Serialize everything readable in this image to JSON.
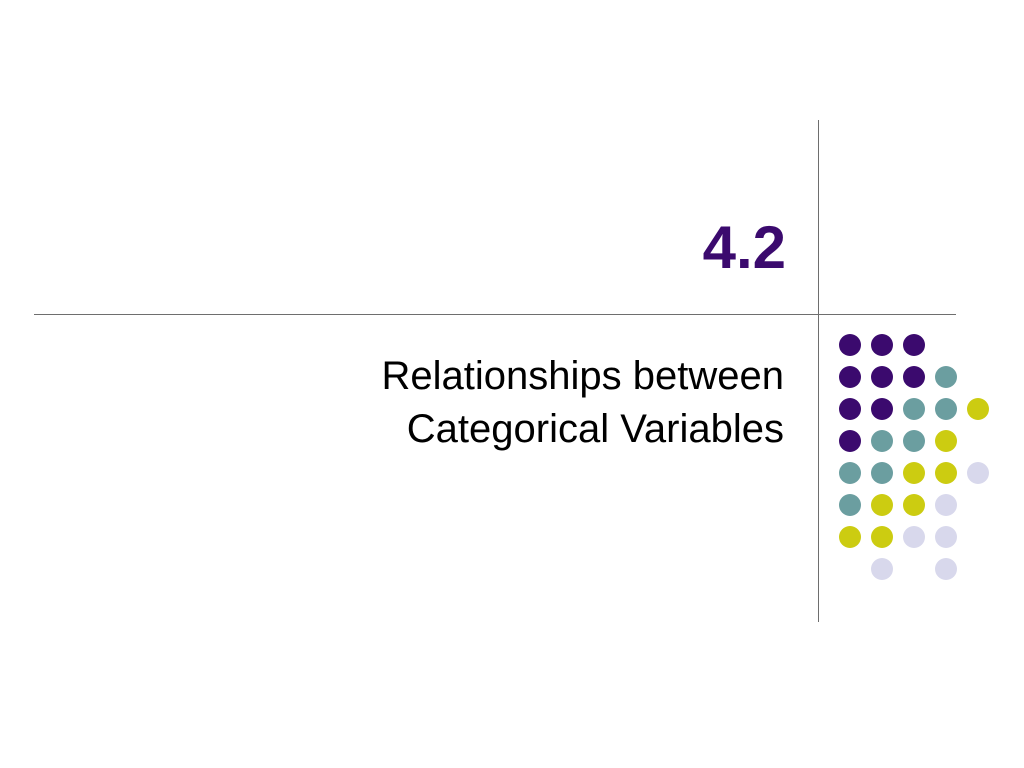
{
  "slide": {
    "title": "4.2",
    "subtitle_lines": [
      "Relationships between",
      "Categorical Variables"
    ]
  },
  "colors": {
    "title": "#3b0a6e",
    "purple": "#3b0a6e",
    "teal": "#6b9ea0",
    "yellow": "#cccc11",
    "lavender": "#d8d8ec",
    "rule": "#6e6e6e"
  },
  "dot_grid": [
    [
      "purple",
      "purple",
      "purple",
      null,
      null
    ],
    [
      "purple",
      "purple",
      "purple",
      "teal",
      null
    ],
    [
      "purple",
      "purple",
      "teal",
      "teal",
      "yellow"
    ],
    [
      "purple",
      "teal",
      "teal",
      "yellow",
      null
    ],
    [
      "teal",
      "teal",
      "yellow",
      "yellow",
      "lavender"
    ],
    [
      "teal",
      "yellow",
      "yellow",
      "lavender",
      null
    ],
    [
      "yellow",
      "yellow",
      "lavender",
      "lavender",
      null
    ],
    [
      null,
      "lavender",
      null,
      "lavender",
      null
    ]
  ]
}
